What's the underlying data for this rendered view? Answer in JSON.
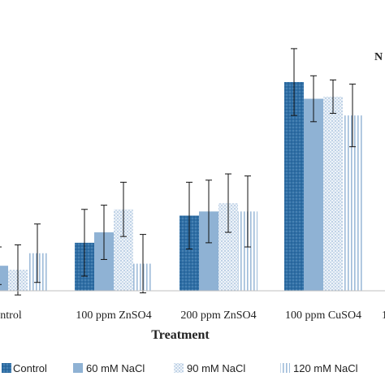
{
  "chart_data": {
    "type": "bar",
    "xlabel": "Treatment",
    "categories": [
      "Control",
      "100 ppm ZnSO4",
      "200 ppm ZnSO4",
      "100 ppm CuSO4"
    ],
    "visible_category_text": [
      "ontrol",
      "100 ppm ZnSO4",
      "200 ppm ZnSO4",
      "100 ppm CuSO4"
    ],
    "series": [
      {
        "name": "Control",
        "values": [
          1.1,
          2.3,
          3.6,
          10.0
        ],
        "errors": [
          1.2,
          1.6,
          1.6,
          1.6
        ],
        "color": "#2f6fa6"
      },
      {
        "name": "60 mM NaCl",
        "values": [
          1.2,
          2.8,
          3.8,
          9.2
        ],
        "errors": [
          0.9,
          1.3,
          1.5,
          1.1
        ],
        "color": "#8fb2d4"
      },
      {
        "name": "90 mM NaCl",
        "values": [
          1.0,
          3.9,
          4.2,
          9.3
        ],
        "errors": [
          1.2,
          1.3,
          1.4,
          0.8
        ],
        "color": "#c6d7e9"
      },
      {
        "name": "120 mM NaCl",
        "values": [
          1.8,
          1.3,
          3.8,
          8.4
        ],
        "errors": [
          1.4,
          1.4,
          1.7,
          1.5
        ],
        "color": "#e8eef6"
      }
    ],
    "legend_placement": "bottom",
    "legend_labels": [
      "Control",
      "60 mM NaCl",
      "90 mM NaCl",
      "120 mM NaCl"
    ],
    "grid": false,
    "edge_fragments": [
      "N",
      "1"
    ]
  }
}
